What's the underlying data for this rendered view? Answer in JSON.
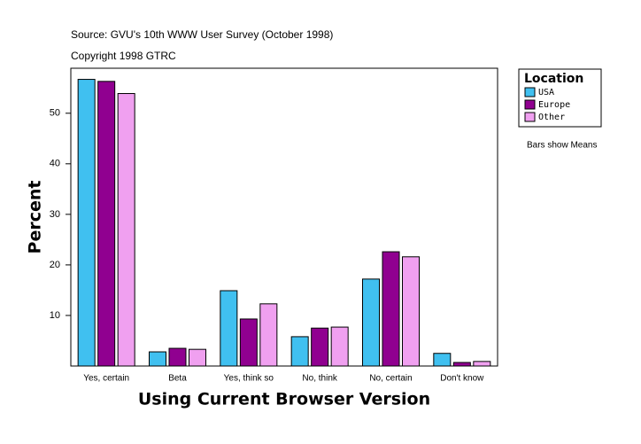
{
  "chart_data": {
    "type": "bar",
    "title": "Source: GVU's 10th WWW User Survey (October 1998)",
    "subtitle": "Copyright 1998 GTRC",
    "x_label": "Using Current Browser Version",
    "y_label": "Percent",
    "legend_title": "Location",
    "annotations": [
      "Bars show Means"
    ],
    "categories": [
      "Yes, certain",
      "Beta",
      "Yes, think so",
      "No, think",
      "No, certain",
      "Don't know"
    ],
    "series": [
      {
        "name": "USA",
        "color": "#40c0f0",
        "values": [
          56.7,
          2.8,
          14.9,
          5.8,
          17.2,
          2.5
        ]
      },
      {
        "name": "Europe",
        "color": "#900090",
        "values": [
          56.3,
          3.5,
          9.3,
          7.5,
          22.6,
          0.7
        ]
      },
      {
        "name": "Other",
        "color": "#f0a0f0",
        "values": [
          53.9,
          3.3,
          12.3,
          7.7,
          21.6,
          0.9
        ]
      }
    ],
    "ylim": [
      0,
      58.9
    ],
    "yticks": [
      10,
      20,
      30,
      40,
      50
    ],
    "grid": false,
    "legend": "right"
  }
}
